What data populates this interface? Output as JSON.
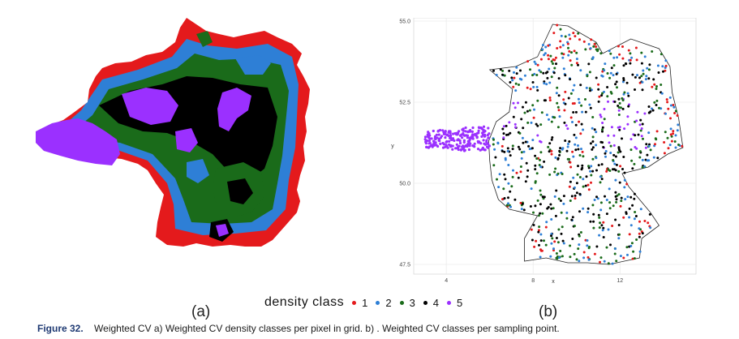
{
  "figure_number": "Figure 32.",
  "caption_text": "Weighted CV a) Weighted CV density classes per pixel in grid. b) . Weighted CV classes per sampling point.",
  "panel_a_label": "(a)",
  "panel_b_label": "(b)",
  "legend": {
    "title": "density  class",
    "classes": [
      {
        "label": "1",
        "color": "#e41a1c"
      },
      {
        "label": "2",
        "color": "#2e7fd6"
      },
      {
        "label": "3",
        "color": "#1a6b1a"
      },
      {
        "label": "4",
        "color": "#000000"
      },
      {
        "label": "5",
        "color": "#9b30ff"
      }
    ]
  },
  "chart_data": {
    "type": "scatter",
    "xlabel": "x",
    "ylabel": "y",
    "x_ticks": [
      "4",
      "8",
      "12"
    ],
    "y_ticks": [
      "47.5",
      "50.0",
      "52.5",
      "55.0"
    ],
    "xlim": [
      2.5,
      15.5
    ],
    "ylim": [
      47.2,
      55.1
    ],
    "grid": true,
    "legend_placement": "bottom"
  }
}
